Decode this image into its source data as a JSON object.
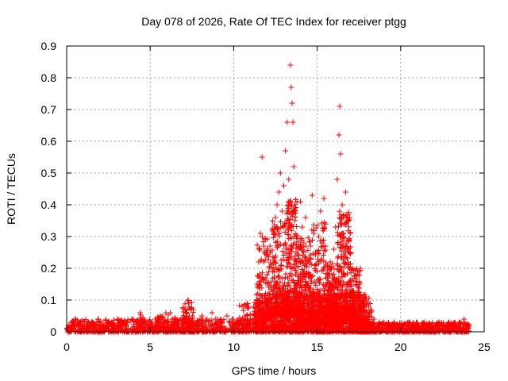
{
  "chart_data": {
    "type": "scatter",
    "title": "Day 078 of 2026, Rate Of TEC Index for receiver ptgg",
    "xlabel": "GPS time / hours",
    "ylabel": "ROTI / TECUs",
    "xlim": [
      0,
      25
    ],
    "ylim": [
      0,
      0.9
    ],
    "xticks": [
      "0",
      "5",
      "10",
      "15",
      "20",
      "25"
    ],
    "yticks": [
      "0",
      "0.1",
      "0.2",
      "0.3",
      "0.4",
      "0.5",
      "0.6",
      "0.7",
      "0.8",
      "0.9"
    ],
    "grid": true,
    "marker": "plus",
    "marker_color": "#ff0000",
    "series": [
      {
        "points": [
          [
            0.1,
            0.02
          ],
          [
            0.3,
            0.03
          ],
          [
            0.5,
            0.02
          ],
          [
            0.8,
            0.03
          ],
          [
            1.0,
            0.02
          ],
          [
            1.3,
            0.03
          ],
          [
            1.6,
            0.02
          ],
          [
            1.9,
            0.04
          ],
          [
            2.1,
            0.03
          ],
          [
            2.4,
            0.02
          ],
          [
            2.7,
            0.03
          ],
          [
            3.0,
            0.02
          ],
          [
            3.3,
            0.03
          ],
          [
            3.6,
            0.03
          ],
          [
            3.9,
            0.04
          ],
          [
            4.2,
            0.03
          ],
          [
            4.4,
            0.06
          ],
          [
            4.7,
            0.03
          ],
          [
            5.0,
            0.02
          ],
          [
            5.3,
            0.04
          ],
          [
            5.6,
            0.05
          ],
          [
            5.9,
            0.03
          ],
          [
            6.2,
            0.06
          ],
          [
            6.5,
            0.03
          ],
          [
            6.8,
            0.04
          ],
          [
            7.1,
            0.07
          ],
          [
            7.3,
            0.09
          ],
          [
            7.5,
            0.04
          ],
          [
            7.8,
            0.03
          ],
          [
            8.1,
            0.05
          ],
          [
            8.4,
            0.04
          ],
          [
            8.7,
            0.06
          ],
          [
            9.0,
            0.04
          ],
          [
            9.3,
            0.03
          ],
          [
            9.6,
            0.05
          ],
          [
            9.9,
            0.04
          ],
          [
            10.2,
            0.03
          ],
          [
            10.5,
            0.08
          ],
          [
            10.7,
            0.05
          ],
          [
            11.0,
            0.04
          ],
          [
            11.2,
            0.08
          ],
          [
            11.4,
            0.15
          ],
          [
            11.5,
            0.22
          ],
          [
            11.6,
            0.31
          ],
          [
            11.7,
            0.55
          ],
          [
            11.8,
            0.27
          ],
          [
            11.9,
            0.12
          ],
          [
            12.0,
            0.18
          ],
          [
            12.2,
            0.25
          ],
          [
            12.3,
            0.32
          ],
          [
            12.4,
            0.2
          ],
          [
            12.5,
            0.36
          ],
          [
            12.6,
            0.4
          ],
          [
            12.7,
            0.44
          ],
          [
            12.8,
            0.5
          ],
          [
            12.9,
            0.38
          ],
          [
            13.0,
            0.46
          ],
          [
            13.1,
            0.57
          ],
          [
            13.2,
            0.66
          ],
          [
            13.3,
            0.48
          ],
          [
            13.4,
            0.84
          ],
          [
            13.45,
            0.77
          ],
          [
            13.5,
            0.72
          ],
          [
            13.55,
            0.66
          ],
          [
            13.6,
            0.52
          ],
          [
            13.7,
            0.38
          ],
          [
            13.8,
            0.3
          ],
          [
            13.9,
            0.24
          ],
          [
            14.0,
            0.41
          ],
          [
            14.1,
            0.33
          ],
          [
            14.2,
            0.28
          ],
          [
            14.3,
            0.36
          ],
          [
            14.4,
            0.22
          ],
          [
            14.5,
            0.18
          ],
          [
            14.6,
            0.27
          ],
          [
            14.7,
            0.43
          ],
          [
            14.8,
            0.31
          ],
          [
            14.9,
            0.25
          ],
          [
            15.0,
            0.19
          ],
          [
            15.1,
            0.3
          ],
          [
            15.2,
            0.38
          ],
          [
            15.3,
            0.28
          ],
          [
            15.4,
            0.42
          ],
          [
            15.5,
            0.27
          ],
          [
            15.6,
            0.21
          ],
          [
            15.7,
            0.14
          ],
          [
            15.8,
            0.1
          ],
          [
            15.9,
            0.17
          ],
          [
            16.0,
            0.26
          ],
          [
            16.1,
            0.33
          ],
          [
            16.2,
            0.48
          ],
          [
            16.3,
            0.62
          ],
          [
            16.35,
            0.71
          ],
          [
            16.4,
            0.56
          ],
          [
            16.5,
            0.4
          ],
          [
            16.6,
            0.3
          ],
          [
            16.7,
            0.44
          ],
          [
            16.8,
            0.36
          ],
          [
            16.9,
            0.29
          ],
          [
            17.0,
            0.25
          ],
          [
            17.1,
            0.2
          ],
          [
            17.2,
            0.16
          ],
          [
            17.3,
            0.11
          ],
          [
            17.5,
            0.07
          ],
          [
            17.7,
            0.1
          ],
          [
            17.9,
            0.06
          ],
          [
            18.1,
            0.05
          ],
          [
            18.4,
            0.04
          ],
          [
            18.7,
            0.03
          ],
          [
            19.0,
            0.03
          ],
          [
            19.3,
            0.02
          ],
          [
            19.6,
            0.03
          ],
          [
            19.9,
            0.02
          ],
          [
            20.2,
            0.02
          ],
          [
            20.5,
            0.03
          ],
          [
            20.8,
            0.02
          ],
          [
            21.1,
            0.02
          ],
          [
            21.4,
            0.03
          ],
          [
            21.7,
            0.02
          ],
          [
            22.0,
            0.02
          ],
          [
            22.3,
            0.03
          ],
          [
            22.6,
            0.02
          ],
          [
            22.9,
            0.03
          ],
          [
            23.2,
            0.02
          ],
          [
            23.5,
            0.03
          ],
          [
            23.8,
            0.04
          ],
          [
            24.0,
            0.02
          ]
        ],
        "bands": [
          {
            "x": [
              0,
              11.2
            ],
            "y": [
              0,
              0.04
            ],
            "count": 900
          },
          {
            "x": [
              4.2,
              4.6
            ],
            "y": [
              0,
              0.06
            ],
            "count": 25
          },
          {
            "x": [
              5.4,
              6.6
            ],
            "y": [
              0,
              0.06
            ],
            "count": 50
          },
          {
            "x": [
              6.9,
              7.6
            ],
            "y": [
              0,
              0.1
            ],
            "count": 70
          },
          {
            "x": [
              10.3,
              11.0
            ],
            "y": [
              0,
              0.09
            ],
            "count": 40
          },
          {
            "x": [
              11.2,
              18.1
            ],
            "y": [
              0,
              0.12
            ],
            "count": 1500
          },
          {
            "x": [
              11.4,
              12.3
            ],
            "y": [
              0.04,
              0.3
            ],
            "count": 130
          },
          {
            "x": [
              12.3,
              13.2
            ],
            "y": [
              0.05,
              0.35
            ],
            "count": 190
          },
          {
            "x": [
              13.2,
              13.8
            ],
            "y": [
              0.05,
              0.42
            ],
            "count": 220
          },
          {
            "x": [
              13.8,
              14.6
            ],
            "y": [
              0.03,
              0.3
            ],
            "count": 240
          },
          {
            "x": [
              14.6,
              15.6
            ],
            "y": [
              0.02,
              0.35
            ],
            "count": 240
          },
          {
            "x": [
              15.6,
              16.2
            ],
            "y": [
              0.02,
              0.22
            ],
            "count": 180
          },
          {
            "x": [
              16.2,
              17.0
            ],
            "y": [
              0.04,
              0.38
            ],
            "count": 240
          },
          {
            "x": [
              17.0,
              17.6
            ],
            "y": [
              0.02,
              0.2
            ],
            "count": 130
          },
          {
            "x": [
              17.5,
              18.3
            ],
            "y": [
              0,
              0.1
            ],
            "count": 80
          },
          {
            "x": [
              18.0,
              24.1
            ],
            "y": [
              0,
              0.03
            ],
            "count": 620
          }
        ]
      }
    ]
  }
}
